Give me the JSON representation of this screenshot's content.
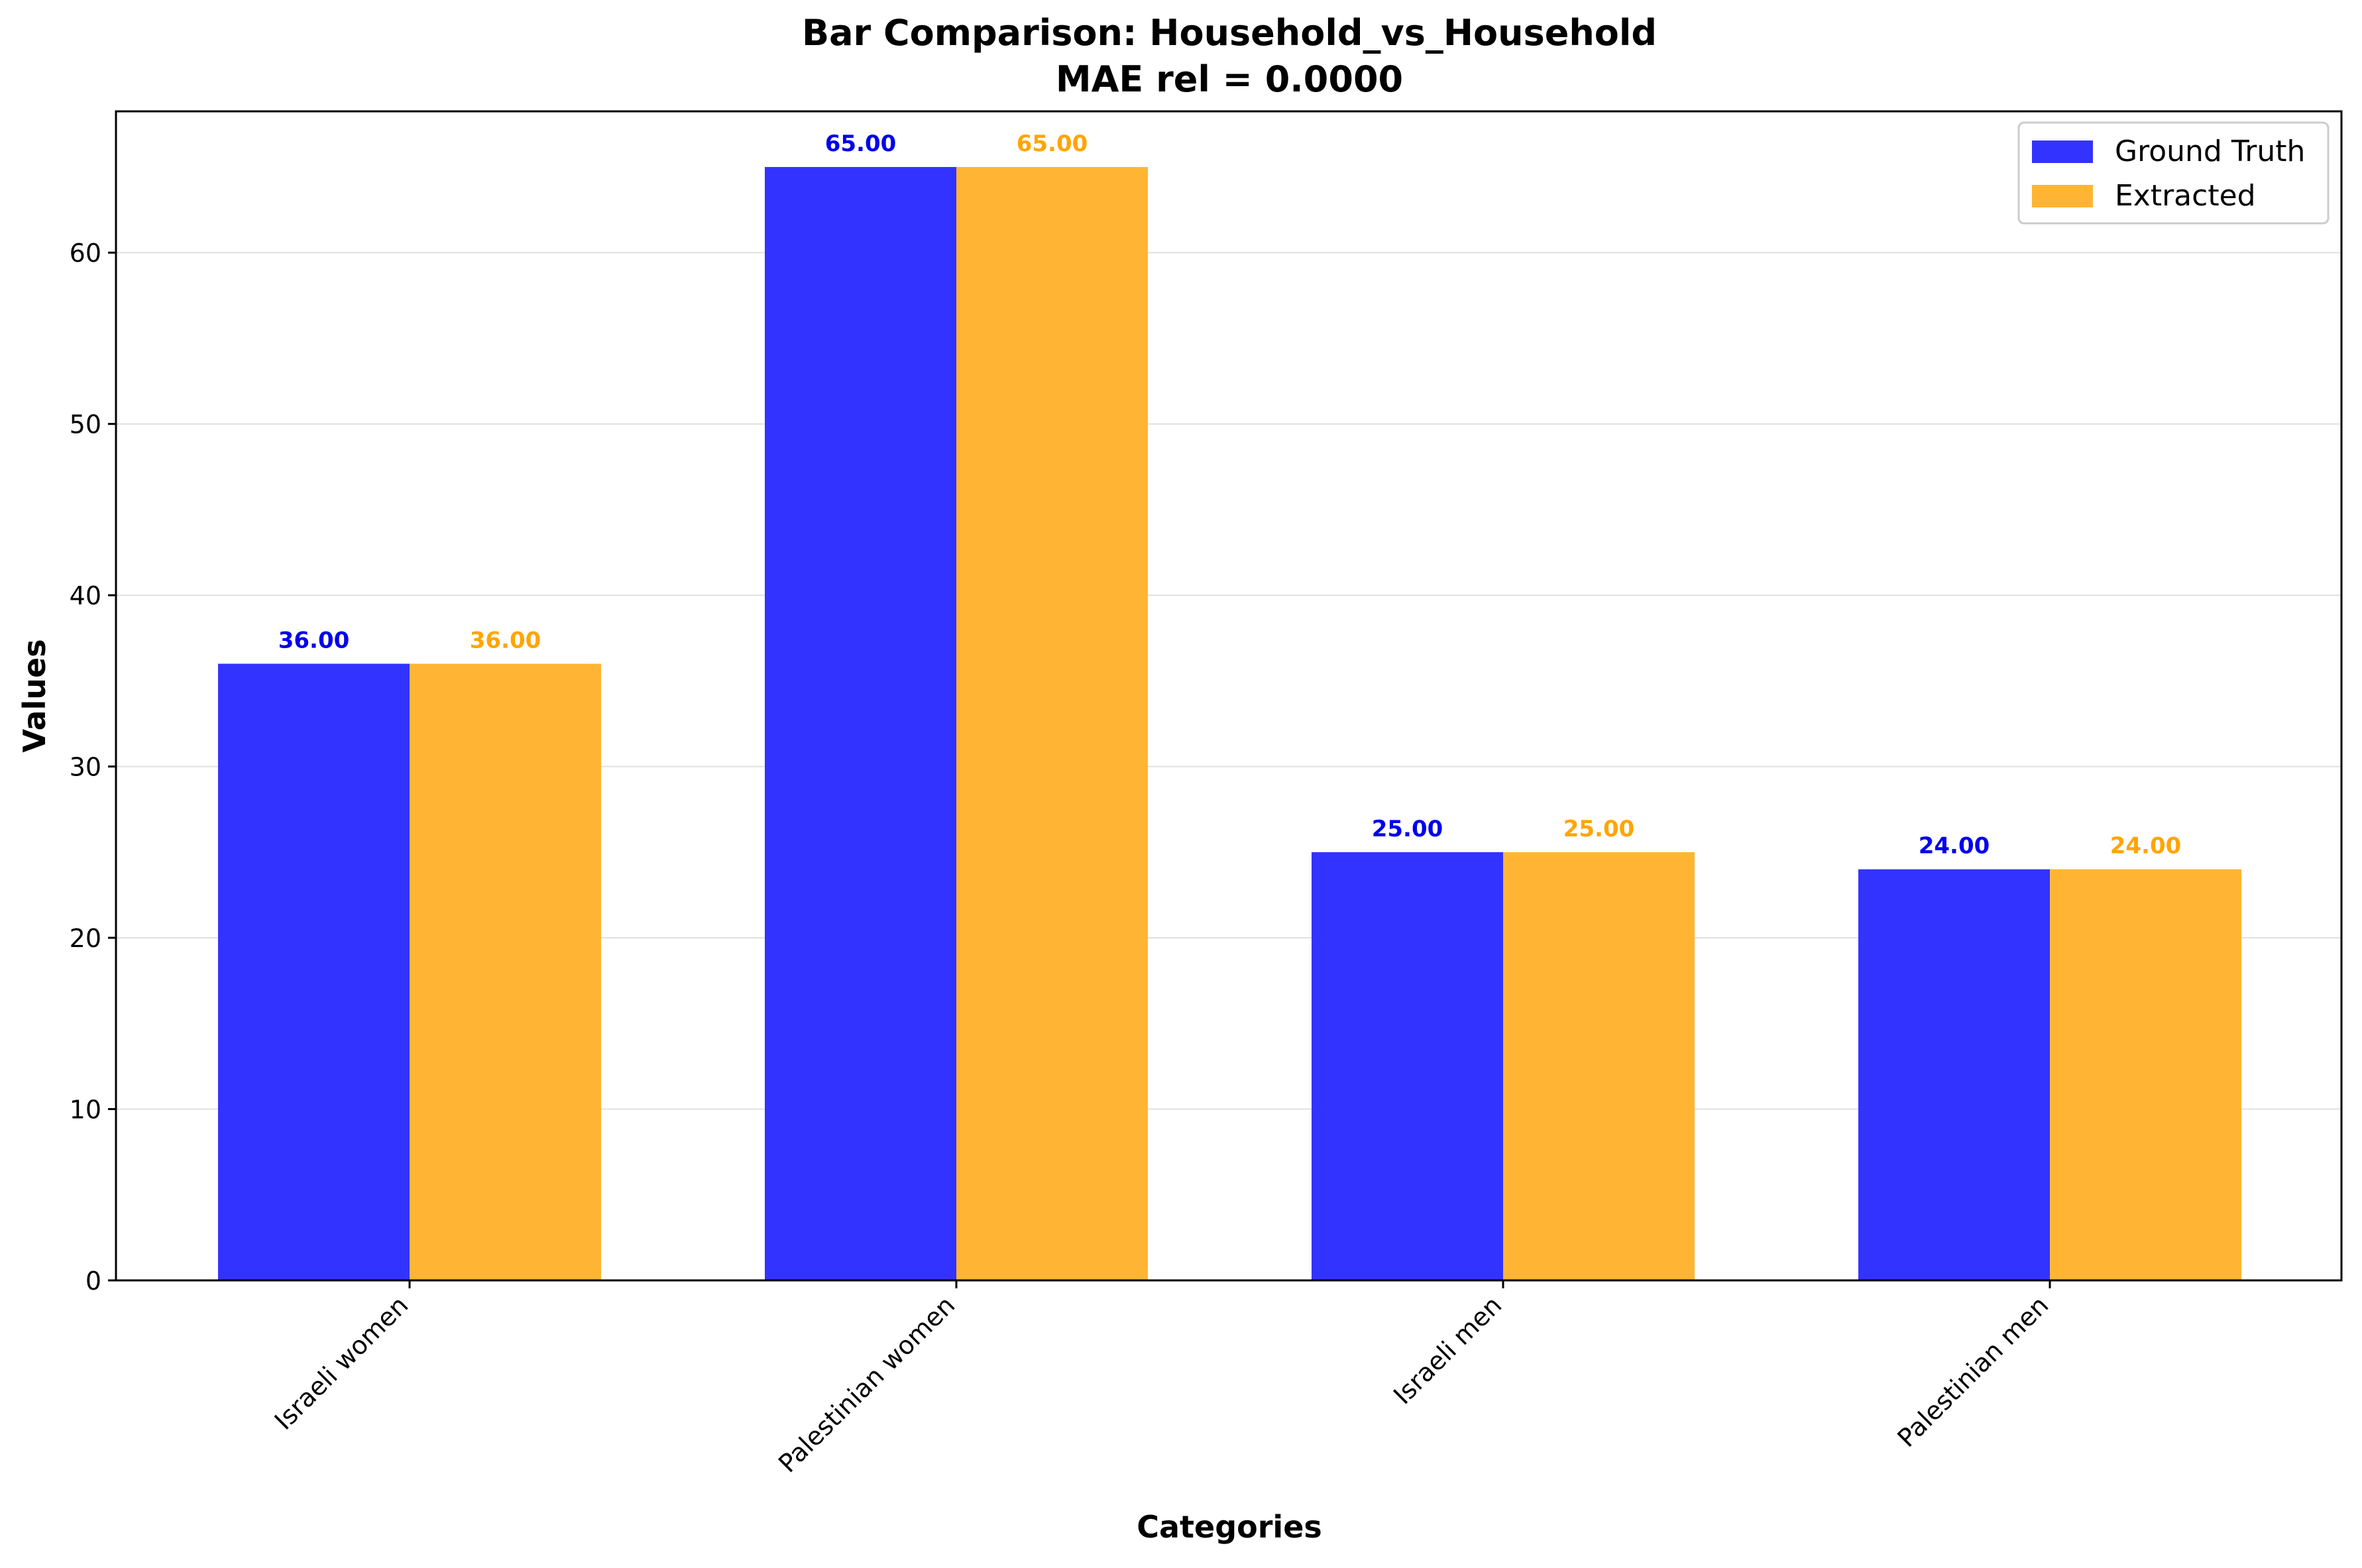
{
  "chart_data": {
    "type": "bar",
    "title": "Bar Comparison: Household_vs_Household",
    "subtitle": "MAE rel = 0.0000",
    "xlabel": "Categories",
    "ylabel": "Values",
    "categories": [
      "Israeli women",
      "Palestinian women",
      "Israeli men",
      "Palestinian men"
    ],
    "series": [
      {
        "name": "Ground Truth",
        "values": [
          36,
          65,
          25,
          24
        ],
        "value_labels": [
          "36.00",
          "65.00",
          "25.00",
          "24.00"
        ],
        "color": "#3333ff",
        "label_color": "#0000ee"
      },
      {
        "name": "Extracted",
        "values": [
          36,
          65,
          25,
          24
        ],
        "value_labels": [
          "36.00",
          "65.00",
          "25.00",
          "24.00"
        ],
        "color": "#ffb533",
        "label_color": "#ffa500"
      }
    ],
    "ylim": [
      0,
      68.25
    ],
    "yticks": [
      0,
      10,
      20,
      30,
      40,
      50,
      60
    ],
    "ytick_labels": [
      "0",
      "10",
      "20",
      "30",
      "40",
      "50",
      "60"
    ],
    "grid": "y",
    "legend_position": "top-right"
  }
}
